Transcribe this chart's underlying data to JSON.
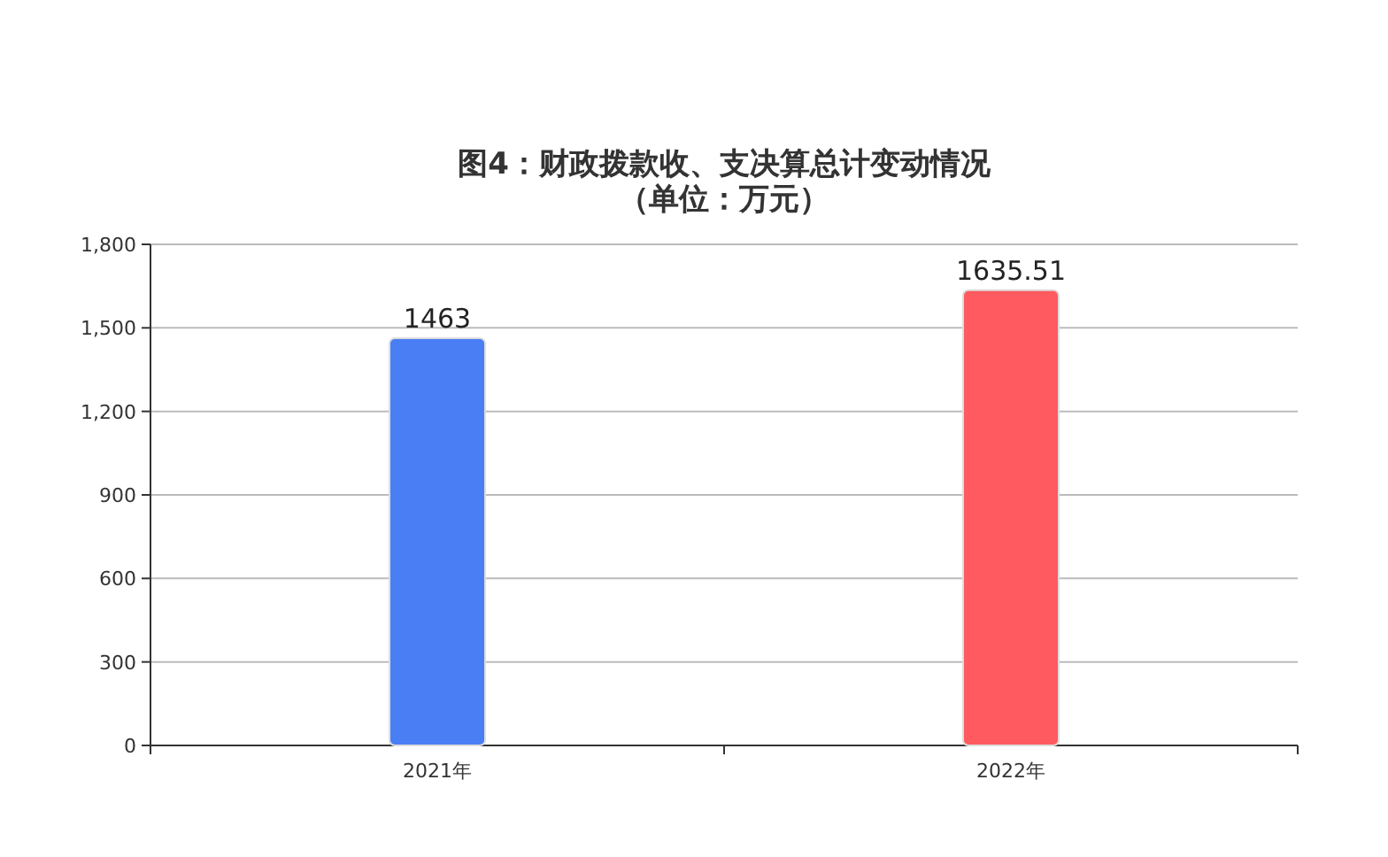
{
  "chart_data": {
    "type": "bar",
    "title": "图4：财政拨款收、支决算总计变动情况",
    "subtitle": "（单位：万元）",
    "categories": [
      "2021年",
      "2022年"
    ],
    "values": [
      1463,
      1635.51
    ],
    "colors": [
      "#4a7ef5",
      "#ff5a5f"
    ],
    "ylim": [
      0,
      1800
    ],
    "yticks": [
      0,
      300,
      600,
      900,
      {
        "value": 1200,
        "label": "1,200"
      },
      {
        "value": 1500,
        "label": "1,500"
      },
      {
        "value": 1800,
        "label": "1,800"
      }
    ],
    "grid": "y",
    "data_labels": true
  }
}
